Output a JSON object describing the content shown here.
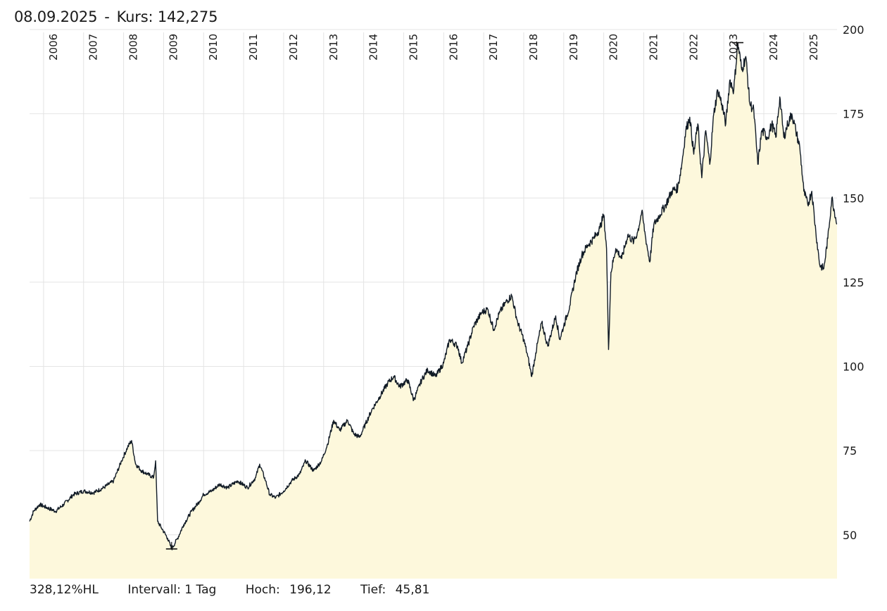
{
  "header": {
    "date": "08.09.2025",
    "separator": "-",
    "kurs_label": "Kurs:",
    "kurs_value": "142,275"
  },
  "footer": {
    "hl_change": "328,12%HL",
    "interval_label": "Intervall:",
    "interval_value": "1 Tag",
    "high_label": "Hoch:",
    "high_value": "196,12",
    "low_label": "Tief:",
    "low_value": "45,81"
  },
  "colors": {
    "line": "#111b26",
    "fill": "#fdf8dc",
    "grid": "#e4e4e4"
  },
  "chart_data": {
    "type": "area",
    "x_label": "",
    "y_label": "",
    "ylim": [
      37,
      200
    ],
    "xlim": [
      2005.65,
      2025.83
    ],
    "y_ticks": [
      50,
      75,
      100,
      125,
      150,
      175,
      200
    ],
    "x_ticks": [
      "2006",
      "2007",
      "2008",
      "2009",
      "2010",
      "2011",
      "2012",
      "2013",
      "2014",
      "2015",
      "2016",
      "2017",
      "2018",
      "2019",
      "2020",
      "2021",
      "2022",
      "2023",
      "2024",
      "2025"
    ],
    "y_axis_position": "right",
    "grid": true,
    "high_marker": {
      "x": 2023.35,
      "y": 196.12
    },
    "low_marker": {
      "x": 2009.2,
      "y": 45.81
    },
    "series": [
      {
        "points": [
          [
            2005.65,
            54
          ],
          [
            2005.75,
            57
          ],
          [
            2005.9,
            59
          ],
          [
            2006.1,
            58
          ],
          [
            2006.3,
            57
          ],
          [
            2006.5,
            59
          ],
          [
            2006.75,
            62
          ],
          [
            2007.0,
            63
          ],
          [
            2007.25,
            62.5
          ],
          [
            2007.5,
            64
          ],
          [
            2007.75,
            66
          ],
          [
            2007.95,
            72
          ],
          [
            2008.1,
            76
          ],
          [
            2008.2,
            78
          ],
          [
            2008.3,
            71
          ],
          [
            2008.45,
            69
          ],
          [
            2008.6,
            68
          ],
          [
            2008.75,
            67
          ],
          [
            2008.8,
            72
          ],
          [
            2008.85,
            54
          ],
          [
            2008.95,
            52
          ],
          [
            2009.1,
            49
          ],
          [
            2009.2,
            45.81
          ],
          [
            2009.35,
            49
          ],
          [
            2009.5,
            53
          ],
          [
            2009.7,
            57
          ],
          [
            2009.9,
            60
          ],
          [
            2010.0,
            62
          ],
          [
            2010.2,
            63
          ],
          [
            2010.4,
            65
          ],
          [
            2010.6,
            64
          ],
          [
            2010.85,
            66
          ],
          [
            2011.1,
            64
          ],
          [
            2011.3,
            67
          ],
          [
            2011.4,
            71
          ],
          [
            2011.55,
            66
          ],
          [
            2011.65,
            62
          ],
          [
            2011.8,
            61
          ],
          [
            2012.0,
            63
          ],
          [
            2012.2,
            66
          ],
          [
            2012.4,
            68
          ],
          [
            2012.55,
            72
          ],
          [
            2012.75,
            69
          ],
          [
            2012.95,
            72
          ],
          [
            2013.1,
            77
          ],
          [
            2013.25,
            84
          ],
          [
            2013.4,
            81
          ],
          [
            2013.6,
            84
          ],
          [
            2013.75,
            80
          ],
          [
            2013.9,
            79
          ],
          [
            2014.05,
            83
          ],
          [
            2014.2,
            87
          ],
          [
            2014.4,
            91
          ],
          [
            2014.6,
            95
          ],
          [
            2014.75,
            97
          ],
          [
            2014.9,
            94
          ],
          [
            2015.1,
            96
          ],
          [
            2015.25,
            90
          ],
          [
            2015.45,
            96
          ],
          [
            2015.6,
            99
          ],
          [
            2015.8,
            97
          ],
          [
            2016.0,
            101
          ],
          [
            2016.15,
            108
          ],
          [
            2016.35,
            106
          ],
          [
            2016.45,
            101
          ],
          [
            2016.6,
            106
          ],
          [
            2016.75,
            112
          ],
          [
            2016.95,
            116
          ],
          [
            2017.1,
            117
          ],
          [
            2017.25,
            111
          ],
          [
            2017.4,
            116
          ],
          [
            2017.55,
            119
          ],
          [
            2017.7,
            121
          ],
          [
            2017.85,
            113
          ],
          [
            2018.0,
            108
          ],
          [
            2018.1,
            103
          ],
          [
            2018.2,
            97
          ],
          [
            2018.3,
            104
          ],
          [
            2018.45,
            113
          ],
          [
            2018.6,
            106
          ],
          [
            2018.8,
            115
          ],
          [
            2018.9,
            108
          ],
          [
            2019.0,
            112
          ],
          [
            2019.15,
            118
          ],
          [
            2019.3,
            127
          ],
          [
            2019.45,
            133
          ],
          [
            2019.6,
            136
          ],
          [
            2019.75,
            138
          ],
          [
            2019.9,
            141
          ],
          [
            2020.0,
            145
          ],
          [
            2020.07,
            135
          ],
          [
            2020.12,
            105
          ],
          [
            2020.18,
            128
          ],
          [
            2020.3,
            135
          ],
          [
            2020.45,
            132
          ],
          [
            2020.6,
            139
          ],
          [
            2020.75,
            137
          ],
          [
            2020.85,
            140
          ],
          [
            2020.95,
            146
          ],
          [
            2021.05,
            138
          ],
          [
            2021.15,
            131
          ],
          [
            2021.25,
            142
          ],
          [
            2021.4,
            145
          ],
          [
            2021.55,
            148
          ],
          [
            2021.7,
            152
          ],
          [
            2021.85,
            153
          ],
          [
            2021.95,
            160
          ],
          [
            2022.05,
            170
          ],
          [
            2022.15,
            174
          ],
          [
            2022.25,
            163
          ],
          [
            2022.35,
            172
          ],
          [
            2022.45,
            156
          ],
          [
            2022.55,
            170
          ],
          [
            2022.65,
            160
          ],
          [
            2022.75,
            175
          ],
          [
            2022.85,
            182
          ],
          [
            2022.95,
            178
          ],
          [
            2023.05,
            172
          ],
          [
            2023.15,
            185
          ],
          [
            2023.25,
            182
          ],
          [
            2023.35,
            196.12
          ],
          [
            2023.45,
            188
          ],
          [
            2023.55,
            192
          ],
          [
            2023.65,
            178
          ],
          [
            2023.75,
            176
          ],
          [
            2023.85,
            160
          ],
          [
            2023.95,
            170
          ],
          [
            2024.1,
            168
          ],
          [
            2024.2,
            172
          ],
          [
            2024.3,
            168
          ],
          [
            2024.4,
            180
          ],
          [
            2024.5,
            168
          ],
          [
            2024.6,
            172
          ],
          [
            2024.7,
            175
          ],
          [
            2024.8,
            170
          ],
          [
            2024.9,
            165
          ],
          [
            2025.0,
            152
          ],
          [
            2025.1,
            148
          ],
          [
            2025.2,
            152
          ],
          [
            2025.3,
            140
          ],
          [
            2025.4,
            130
          ],
          [
            2025.5,
            129
          ],
          [
            2025.6,
            138
          ],
          [
            2025.7,
            150
          ],
          [
            2025.83,
            142.275
          ]
        ]
      }
    ]
  }
}
